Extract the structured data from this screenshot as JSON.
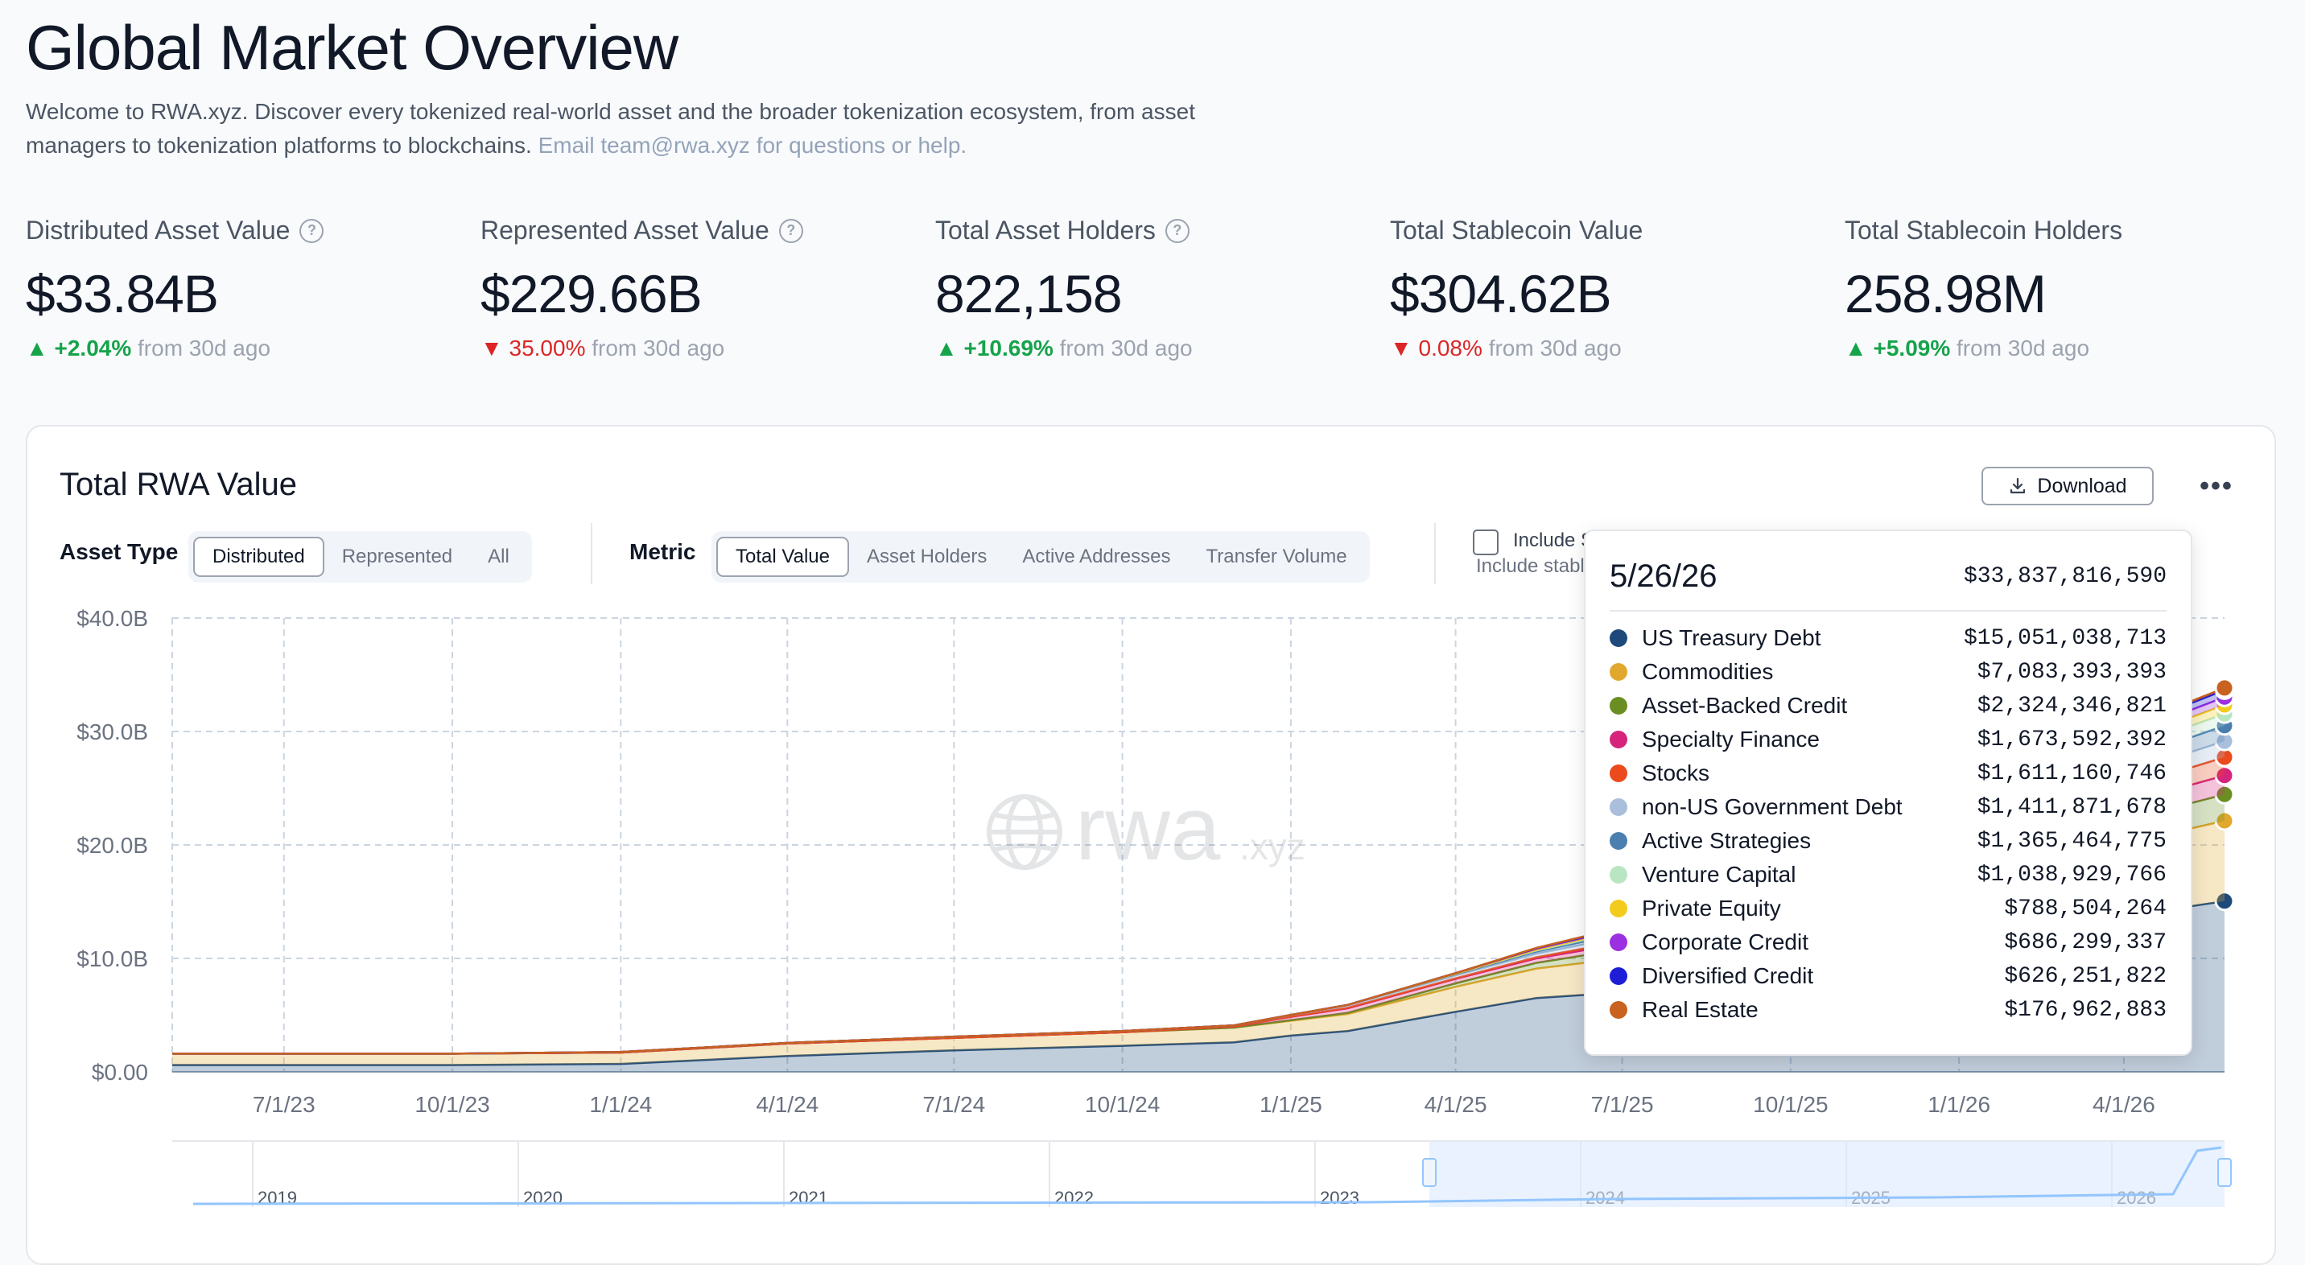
{
  "header": {
    "title": "Global Market Overview",
    "intro": "Welcome to RWA.xyz. Discover every tokenized real-world asset and the broader tokenization ecosystem, from asset managers to tokenization platforms to blockchains.",
    "email_note": "Email team@rwa.xyz for questions or help."
  },
  "stats": [
    {
      "label": "Distributed Asset Value",
      "value": "$33.84B",
      "change": "+2.04%",
      "direction": "up",
      "suffix": "from 30d ago",
      "has_help": true
    },
    {
      "label": "Represented Asset Value",
      "value": "$229.66B",
      "change": "35.00%",
      "direction": "down",
      "suffix": "from 30d ago",
      "has_help": true
    },
    {
      "label": "Total Asset Holders",
      "value": "822,158",
      "change": "+10.69%",
      "direction": "up",
      "suffix": "from 30d ago",
      "has_help": true
    },
    {
      "label": "Total Stablecoin Value",
      "value": "$304.62B",
      "change": "0.08%",
      "direction": "down",
      "suffix": "from 30d ago",
      "has_help": false
    },
    {
      "label": "Total Stablecoin Holders",
      "value": "258.98M",
      "change": "+5.09%",
      "direction": "up",
      "suffix": "from 30d ago",
      "has_help": false
    }
  ],
  "card": {
    "title": "Total RWA Value",
    "download_label": "Download",
    "more_label": "•••",
    "asset_type_label": "Asset Type",
    "asset_type_options": [
      "Distributed",
      "Represented",
      "All"
    ],
    "asset_type_selected": "Distributed",
    "metric_label": "Metric",
    "metric_options": [
      "Total Value",
      "Asset Holders",
      "Active Addresses",
      "Transfer Volume"
    ],
    "metric_selected": "Total Value",
    "include_label": "Include Sta",
    "include_sub": "Include stablec",
    "watermark": "rwa",
    "watermark_suffix": ".xyz"
  },
  "tooltip": {
    "date": "5/26/26",
    "total": "$33,837,816,590",
    "rows": [
      {
        "name": "US Treasury Debt",
        "value": "$15,051,038,713"
      },
      {
        "name": "Commodities",
        "value": "$7,083,393,393"
      },
      {
        "name": "Asset-Backed Credit",
        "value": "$2,324,346,821"
      },
      {
        "name": "Specialty Finance",
        "value": "$1,673,592,392"
      },
      {
        "name": "Stocks",
        "value": "$1,611,160,746"
      },
      {
        "name": "non-US Government Debt",
        "value": "$1,411,871,678"
      },
      {
        "name": "Active Strategies",
        "value": "$1,365,464,775"
      },
      {
        "name": "Venture Capital",
        "value": "$1,038,929,766"
      },
      {
        "name": "Private Equity",
        "value": "$788,504,264"
      },
      {
        "name": "Corporate Credit",
        "value": "$686,299,337"
      },
      {
        "name": "Diversified Credit",
        "value": "$626,251,822"
      },
      {
        "name": "Real Estate",
        "value": "$176,962,883"
      }
    ]
  },
  "chart_data": {
    "type": "area",
    "title": "Total RWA Value",
    "xlabel": "",
    "ylabel": "",
    "ylim": [
      0,
      40
    ],
    "yticks": [
      0,
      10,
      20,
      30,
      40
    ],
    "ytick_labels": [
      "$0.00",
      "$10.0B",
      "$20.0B",
      "$30.0B",
      "$40.0B"
    ],
    "xlim": [
      "5/1/23",
      "5/26/26"
    ],
    "xticks": [
      "7/1/23",
      "10/1/23",
      "1/1/24",
      "4/1/24",
      "7/1/24",
      "10/1/24",
      "1/1/25",
      "4/1/25",
      "7/1/25",
      "10/1/25",
      "1/1/26",
      "4/1/26"
    ],
    "grid": true,
    "legend": "tooltip",
    "unit": "billion USD",
    "stacked": true,
    "x": [
      "5/1/23",
      "7/1/23",
      "10/1/23",
      "1/1/24",
      "4/1/24",
      "7/1/24",
      "10/1/24",
      "12/1/24",
      "1/1/25",
      "2/1/25",
      "4/1/25",
      "5/15/25",
      "7/1/25",
      "5/26/26"
    ],
    "series": [
      {
        "name": "US Treasury Debt",
        "color": "#1e4a7b",
        "values": [
          0.6,
          0.6,
          0.6,
          0.7,
          1.4,
          1.9,
          2.3,
          2.6,
          3.2,
          3.6,
          5.3,
          6.5,
          7.0,
          15.05
        ]
      },
      {
        "name": "Commodities",
        "color": "#e0a82e",
        "values": [
          1.0,
          1.0,
          1.0,
          1.0,
          1.1,
          1.1,
          1.2,
          1.3,
          1.3,
          1.5,
          2.2,
          2.6,
          3.0,
          7.08
        ]
      },
      {
        "name": "Asset-Backed Credit",
        "color": "#6b8e23",
        "values": [
          0,
          0,
          0,
          0,
          0,
          0,
          0,
          0,
          0.05,
          0.1,
          0.3,
          0.5,
          0.8,
          2.32
        ]
      },
      {
        "name": "Specialty Finance",
        "color": "#d6247c",
        "values": [
          0,
          0,
          0,
          0,
          0,
          0,
          0,
          0.1,
          0.3,
          0.4,
          0.4,
          0.4,
          0.5,
          1.67
        ]
      },
      {
        "name": "Stocks",
        "color": "#ea4a1c",
        "values": [
          0,
          0,
          0,
          0,
          0,
          0,
          0,
          0,
          0.02,
          0.05,
          0.05,
          0.1,
          0.2,
          1.61
        ]
      },
      {
        "name": "non-US Government Debt",
        "color": "#a9bfdc",
        "values": [
          0,
          0,
          0,
          0.05,
          0.05,
          0.1,
          0.1,
          0.1,
          0.15,
          0.2,
          0.25,
          0.3,
          0.4,
          1.41
        ]
      },
      {
        "name": "Active Strategies",
        "color": "#4a7fb0",
        "values": [
          0,
          0,
          0,
          0,
          0,
          0,
          0,
          0,
          0,
          0.05,
          0.1,
          0.2,
          0.3,
          1.37
        ]
      },
      {
        "name": "Venture Capital",
        "color": "#b9e6c2",
        "values": [
          0,
          0,
          0,
          0,
          0,
          0,
          0,
          0,
          0,
          0,
          0.05,
          0.1,
          0.2,
          1.04
        ]
      },
      {
        "name": "Private Equity",
        "color": "#f2cb1d",
        "values": [
          0,
          0,
          0,
          0,
          0,
          0,
          0,
          0,
          0,
          0,
          0,
          0.05,
          0.1,
          0.79
        ]
      },
      {
        "name": "Corporate Credit",
        "color": "#9b30e0",
        "values": [
          0,
          0,
          0,
          0,
          0,
          0,
          0,
          0,
          0,
          0,
          0.05,
          0.1,
          0.1,
          0.69
        ]
      },
      {
        "name": "Diversified Credit",
        "color": "#1e1ed8",
        "values": [
          0,
          0,
          0,
          0,
          0,
          0,
          0,
          0,
          0,
          0,
          0,
          0.05,
          0.1,
          0.63
        ]
      },
      {
        "name": "Real Estate",
        "color": "#c8621e",
        "values": [
          0,
          0,
          0,
          0,
          0,
          0,
          0,
          0,
          0,
          0,
          0,
          0.02,
          0.05,
          0.18
        ]
      }
    ],
    "navigator": {
      "year_labels": [
        "2019",
        "2020",
        "2021",
        "2022",
        "2023",
        "2024",
        "2025",
        "2026"
      ]
    }
  }
}
